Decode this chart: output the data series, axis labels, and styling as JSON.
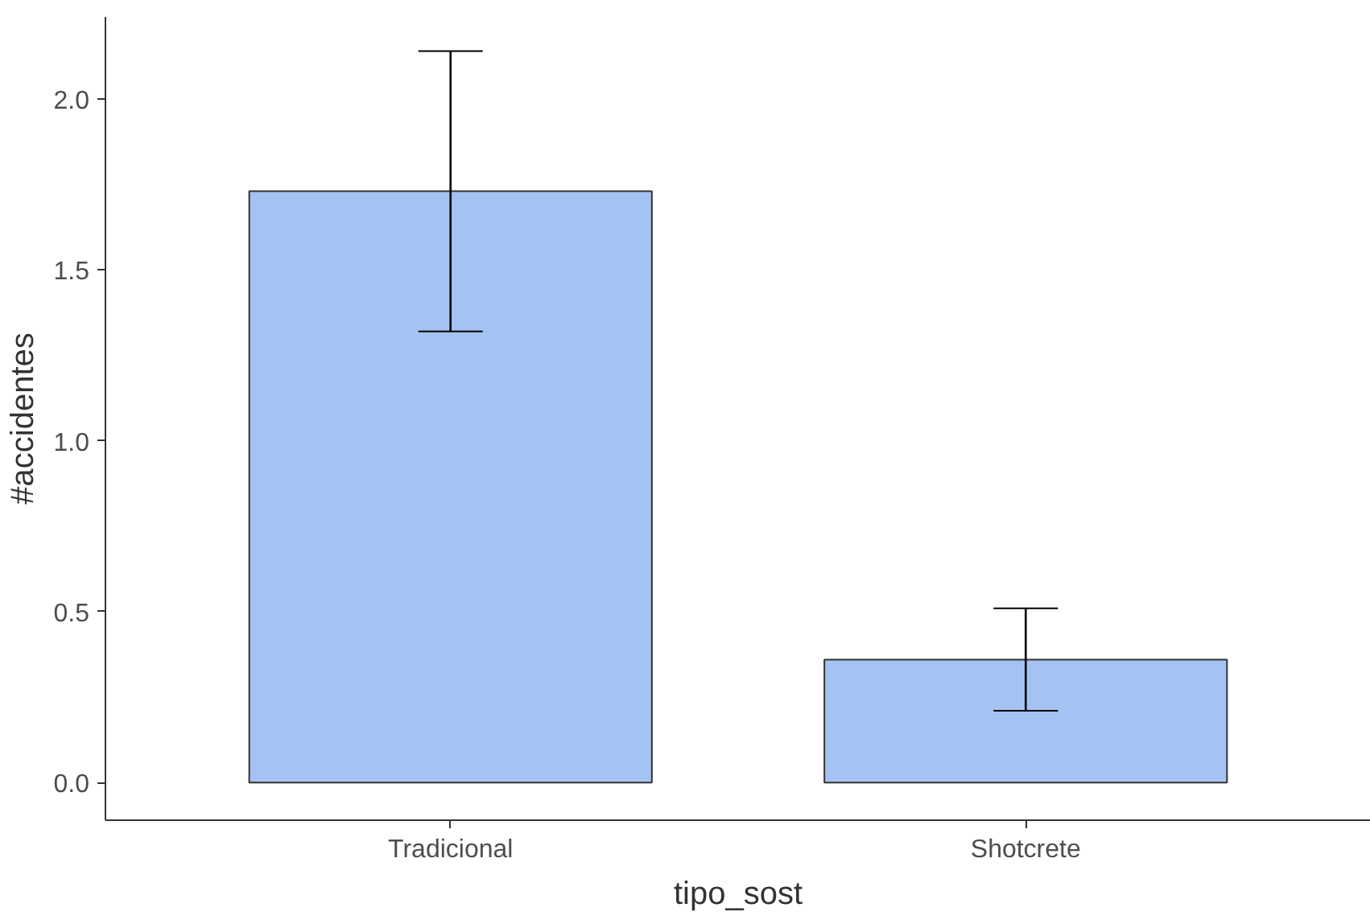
{
  "chart_data": {
    "type": "bar",
    "xlabel": "tipo_sost",
    "ylabel": "#accidentes",
    "categories": [
      "Tradicional",
      "Shotcrete"
    ],
    "values": [
      1.73,
      0.36
    ],
    "errors": [
      [
        1.32,
        2.14
      ],
      [
        0.21,
        0.51
      ]
    ],
    "color": "#a4c3f2",
    "ylim": [
      -0.11,
      2.24
    ],
    "yticks": [
      {
        "value": 0,
        "label": "0.0"
      },
      {
        "value": 0.5,
        "label": "0.5"
      },
      {
        "value": 1,
        "label": "1.0"
      },
      {
        "value": 1.5,
        "label": "1.5"
      },
      {
        "value": 2,
        "label": "2.0"
      }
    ],
    "grid": false
  }
}
